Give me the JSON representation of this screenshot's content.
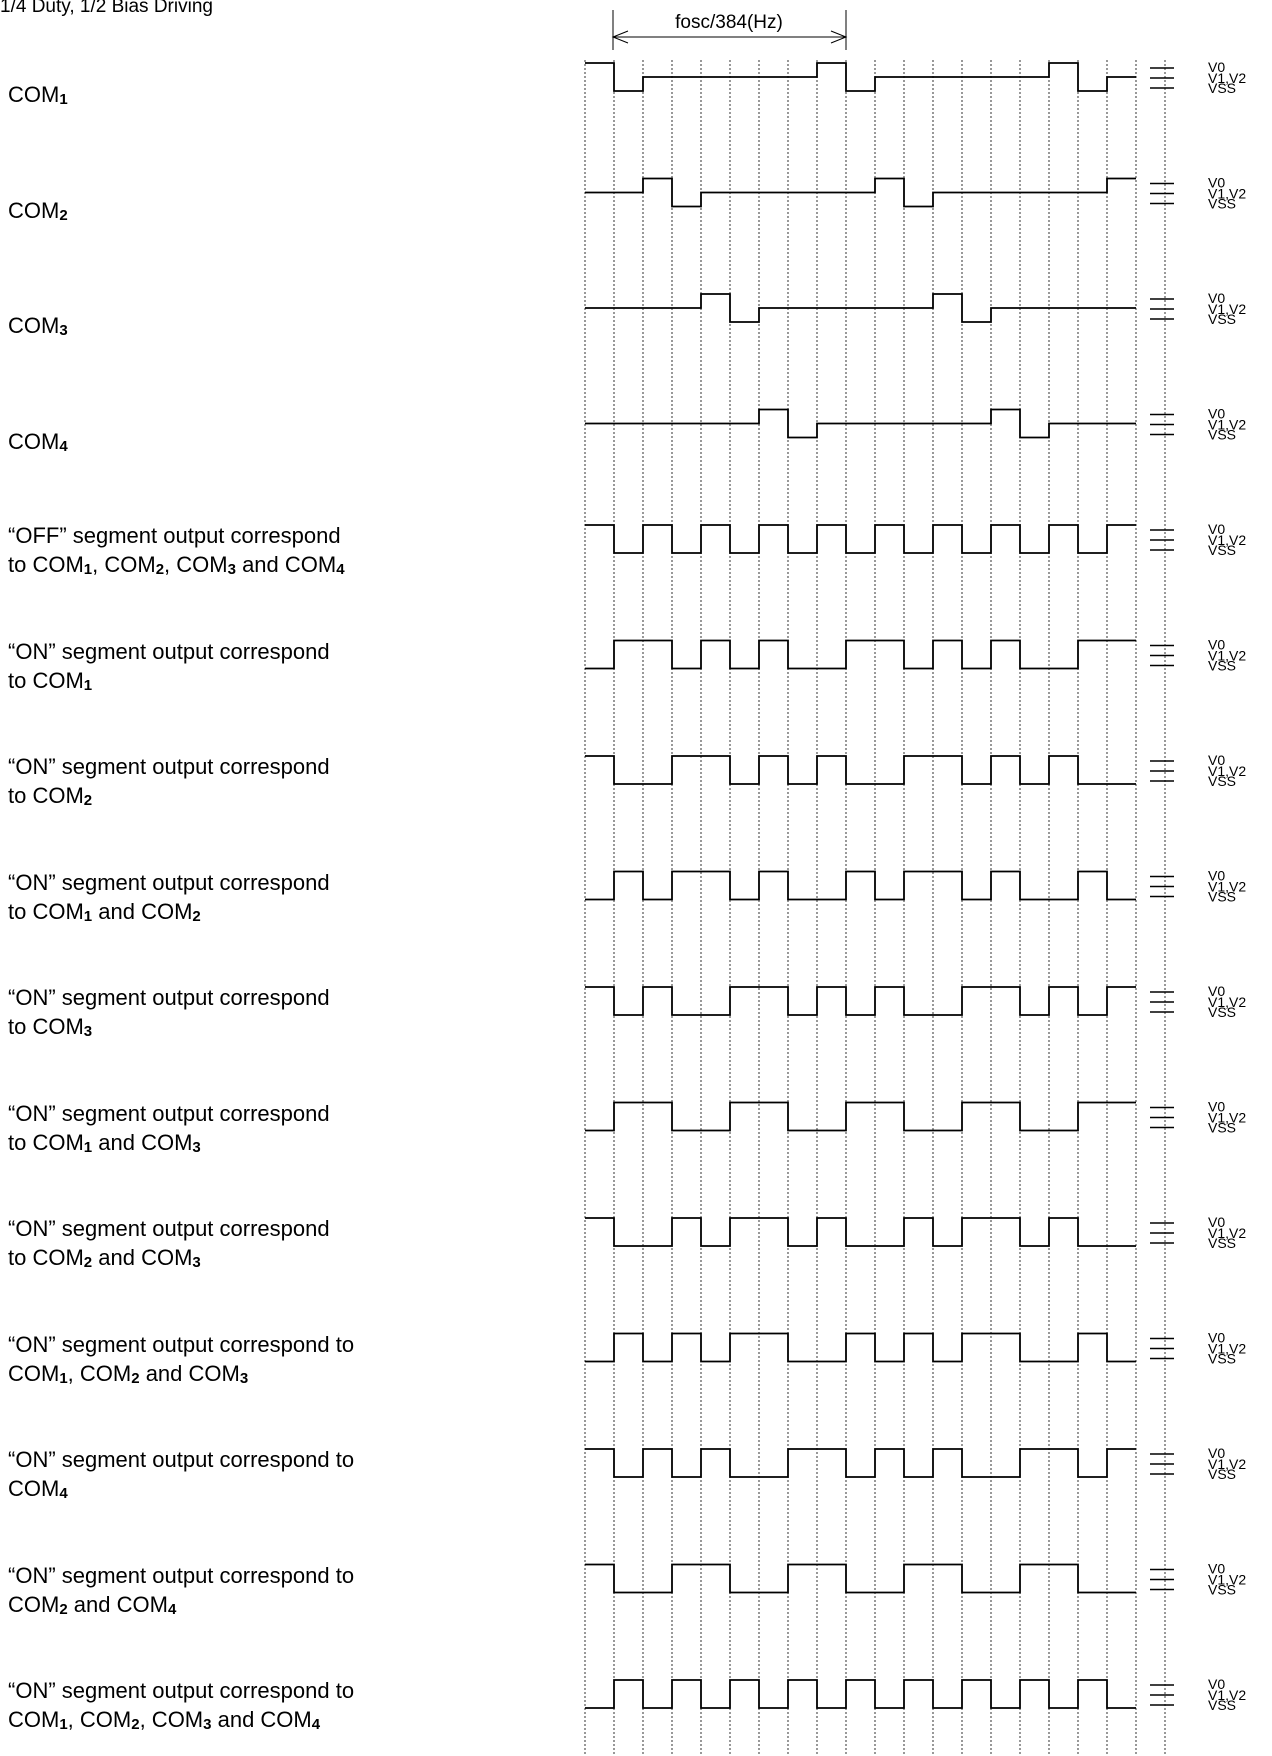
{
  "heading": "1/4 Duty, 1/2 Bias Driving",
  "period_label": "fosc/384(Hz)",
  "level_labels": {
    "top": "V0",
    "mid": "V1,V2",
    "bottom": "VSS"
  },
  "rows": [
    {
      "label": [
        [
          "COM",
          "1"
        ]
      ],
      "levels": [
        2,
        0,
        1,
        1,
        1,
        1,
        1,
        1,
        2,
        0,
        1,
        1,
        1,
        1,
        1,
        1,
        2,
        0,
        1
      ]
    },
    {
      "label": [
        [
          "COM",
          "2"
        ]
      ],
      "levels": [
        1,
        1,
        2,
        0,
        1,
        1,
        1,
        1,
        1,
        1,
        2,
        0,
        1,
        1,
        1,
        1,
        1,
        1,
        2
      ]
    },
    {
      "label": [
        [
          "COM",
          "3"
        ]
      ],
      "levels": [
        1,
        1,
        1,
        1,
        2,
        0,
        1,
        1,
        1,
        1,
        1,
        1,
        2,
        0,
        1,
        1,
        1,
        1,
        1
      ]
    },
    {
      "label": [
        [
          "COM",
          "4"
        ]
      ],
      "levels": [
        1,
        1,
        1,
        1,
        1,
        1,
        2,
        0,
        1,
        1,
        1,
        1,
        1,
        1,
        2,
        0,
        1,
        1,
        1
      ]
    },
    {
      "label": [
        [
          "“OFF” segment output correspond"
        ],
        [
          "to COM",
          "1",
          ", COM",
          "2",
          ", COM",
          "3",
          " and COM",
          "4"
        ]
      ],
      "levels": [
        2,
        0,
        2,
        0,
        2,
        0,
        2,
        0,
        2,
        0,
        2,
        0,
        2,
        0,
        2,
        0,
        2,
        0,
        2
      ]
    },
    {
      "label": [
        [
          "“ON” segment output correspond"
        ],
        [
          "to COM",
          "1"
        ]
      ],
      "levels": [
        0,
        2,
        2,
        0,
        2,
        0,
        2,
        0,
        0,
        2,
        2,
        0,
        2,
        0,
        2,
        0,
        0,
        2,
        2
      ]
    },
    {
      "label": [
        [
          "“ON” segment output correspond"
        ],
        [
          "to COM",
          "2"
        ]
      ],
      "levels": [
        2,
        0,
        0,
        2,
        2,
        0,
        2,
        0,
        2,
        0,
        0,
        2,
        2,
        0,
        2,
        0,
        2,
        0,
        0
      ]
    },
    {
      "label": [
        [
          "“ON” segment output correspond"
        ],
        [
          "to COM",
          "1",
          " and COM",
          "2"
        ]
      ],
      "levels": [
        0,
        2,
        0,
        2,
        2,
        0,
        2,
        0,
        0,
        2,
        0,
        2,
        2,
        0,
        2,
        0,
        0,
        2,
        0
      ]
    },
    {
      "label": [
        [
          "“ON” segment output correspond"
        ],
        [
          "to COM",
          "3"
        ]
      ],
      "levels": [
        2,
        0,
        2,
        0,
        0,
        2,
        2,
        0,
        2,
        0,
        2,
        0,
        0,
        2,
        2,
        0,
        2,
        0,
        2
      ]
    },
    {
      "label": [
        [
          "“ON” segment output correspond"
        ],
        [
          "to COM",
          "1",
          " and COM",
          "3"
        ]
      ],
      "levels": [
        0,
        2,
        2,
        0,
        0,
        2,
        2,
        0,
        0,
        2,
        2,
        0,
        0,
        2,
        2,
        0,
        0,
        2,
        2
      ]
    },
    {
      "label": [
        [
          "“ON” segment output correspond"
        ],
        [
          "to COM",
          "2",
          " and COM",
          "3"
        ]
      ],
      "levels": [
        2,
        0,
        0,
        2,
        0,
        2,
        2,
        0,
        2,
        0,
        0,
        2,
        0,
        2,
        2,
        0,
        2,
        0,
        0
      ]
    },
    {
      "label": [
        [
          "“ON” segment output correspond to"
        ],
        [
          "COM",
          "1",
          ", COM",
          "2",
          " and COM",
          "3"
        ]
      ],
      "levels": [
        0,
        2,
        0,
        2,
        0,
        2,
        2,
        0,
        0,
        2,
        0,
        2,
        0,
        2,
        2,
        0,
        0,
        2,
        0
      ]
    },
    {
      "label": [
        [
          "“ON” segment output correspond to"
        ],
        [
          "COM",
          "4"
        ]
      ],
      "levels": [
        2,
        0,
        2,
        0,
        2,
        0,
        0,
        2,
        2,
        0,
        2,
        0,
        2,
        0,
        0,
        2,
        2,
        0,
        2
      ]
    },
    {
      "label": [
        [
          "“ON” segment output correspond to"
        ],
        [
          "COM",
          "2",
          " and COM",
          "4"
        ]
      ],
      "levels": [
        2,
        0,
        0,
        2,
        2,
        0,
        0,
        2,
        2,
        0,
        0,
        2,
        2,
        0,
        0,
        2,
        2,
        0,
        0
      ]
    },
    {
      "label": [
        [
          "“ON” segment output correspond to"
        ],
        [
          "COM",
          "1",
          ", COM",
          "2",
          ", COM",
          "3",
          " and COM",
          "4"
        ]
      ],
      "levels": [
        0,
        2,
        0,
        2,
        0,
        2,
        0,
        2,
        0,
        2,
        0,
        2,
        0,
        2,
        0,
        2,
        0,
        2,
        0
      ]
    }
  ]
}
